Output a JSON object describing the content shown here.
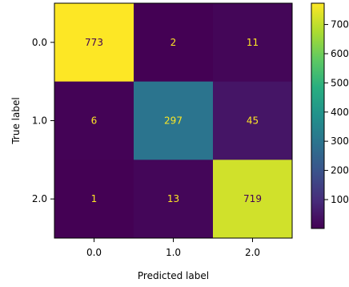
{
  "chart_data": {
    "type": "heatmap",
    "title": "",
    "xlabel": "Predicted label",
    "ylabel": "True label",
    "x_categories": [
      "0.0",
      "1.0",
      "2.0"
    ],
    "y_categories": [
      "0.0",
      "1.0",
      "2.0"
    ],
    "values": [
      [
        773,
        2,
        11
      ],
      [
        6,
        297,
        45
      ],
      [
        1,
        13,
        719
      ]
    ],
    "colormap": "viridis",
    "colorbar": {
      "ticks": [
        100,
        200,
        300,
        400,
        500,
        600,
        700
      ],
      "tick_labels": [
        "100",
        "200",
        "300",
        "400",
        "500",
        "600",
        "700"
      ],
      "range": [
        1,
        773
      ]
    },
    "label_colors": {
      "on_dark": "#fde725",
      "on_light": "#440154"
    },
    "grid": false
  }
}
